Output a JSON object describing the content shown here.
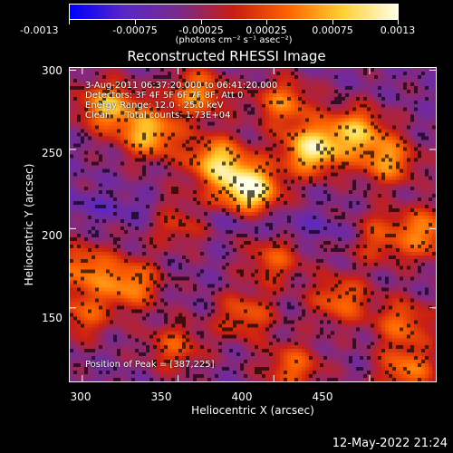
{
  "colorbar": {
    "tick_labels": [
      "-0.0013",
      "-0.00075",
      "-0.00025",
      "0.00025",
      "0.00075",
      "0.0013"
    ],
    "tick_values": [
      -0.0013,
      -0.00075,
      -0.00025,
      0.00025,
      0.00075,
      0.0013
    ],
    "units_label": "(photons cm⁻² s⁻¹ asec⁻²)",
    "colors": [
      "#0000ff",
      "#5a28c8",
      "#7a2a8c",
      "#c81e14",
      "#ff6400",
      "#ffd232",
      "#ffffe6"
    ]
  },
  "chart_data": {
    "type": "heatmap",
    "title": "Reconstructed RHESSI Image",
    "xlabel": "Heliocentric X (arcsec)",
    "ylabel": "Heliocentric Y (arcsec)",
    "xlim": [
      293,
      485
    ],
    "ylim": [
      103,
      302
    ],
    "xticks": [
      300,
      350,
      400,
      450
    ],
    "yticks": [
      150,
      200,
      250,
      300
    ],
    "clim": [
      -0.0013,
      0.0013
    ],
    "sources": [
      {
        "x": 387,
        "y": 225,
        "peak": 0.0013
      },
      {
        "x": 420,
        "y": 250,
        "peak": 0.00105
      },
      {
        "x": 370,
        "y": 243,
        "peak": 0.00085
      },
      {
        "x": 335,
        "y": 260,
        "peak": 0.0008
      },
      {
        "x": 313,
        "y": 278,
        "peak": 0.0008
      },
      {
        "x": 443,
        "y": 262,
        "peak": 0.0007
      },
      {
        "x": 460,
        "y": 243,
        "peak": 0.0006
      },
      {
        "x": 360,
        "y": 286,
        "peak": 0.0006
      },
      {
        "x": 405,
        "y": 280,
        "peak": 0.0005
      },
      {
        "x": 325,
        "y": 165,
        "peak": 0.0006
      },
      {
        "x": 300,
        "y": 175,
        "peak": 0.0005
      },
      {
        "x": 480,
        "y": 196,
        "peak": 0.0007
      },
      {
        "x": 455,
        "y": 195,
        "peak": 0.0004
      },
      {
        "x": 400,
        "y": 180,
        "peak": 0.0003
      },
      {
        "x": 435,
        "y": 155,
        "peak": 0.00045
      },
      {
        "x": 468,
        "y": 140,
        "peak": 0.0004
      },
      {
        "x": 385,
        "y": 145,
        "peak": 0.00035
      },
      {
        "x": 348,
        "y": 125,
        "peak": 0.0003
      },
      {
        "x": 300,
        "y": 145,
        "peak": 0.0003
      },
      {
        "x": 410,
        "y": 112,
        "peak": 0.0004
      },
      {
        "x": 470,
        "y": 110,
        "peak": 0.0005
      },
      {
        "x": 350,
        "y": 205,
        "peak": 0.0003
      }
    ],
    "peak_position": [
      387,
      225
    ]
  },
  "annotations": {
    "time_range": "3-Aug-2011 06:37:20.000 to 06:41:20.000",
    "detectors": "Detectors: 3F 4F 5F 6F 7F 8F, Att 0",
    "energy_range": "Energy Range: 12.0 - 25.0 keV",
    "method_counts": "Clean     Total counts: 1.73E+04",
    "peak_label": "Position of Peak = [387,225]"
  },
  "axes": {
    "xtick_labels": [
      "300",
      "350",
      "400",
      "450"
    ],
    "ytick_labels": [
      "300",
      "250",
      "200",
      "150"
    ]
  },
  "datestamp": "12-May-2022 21:24"
}
